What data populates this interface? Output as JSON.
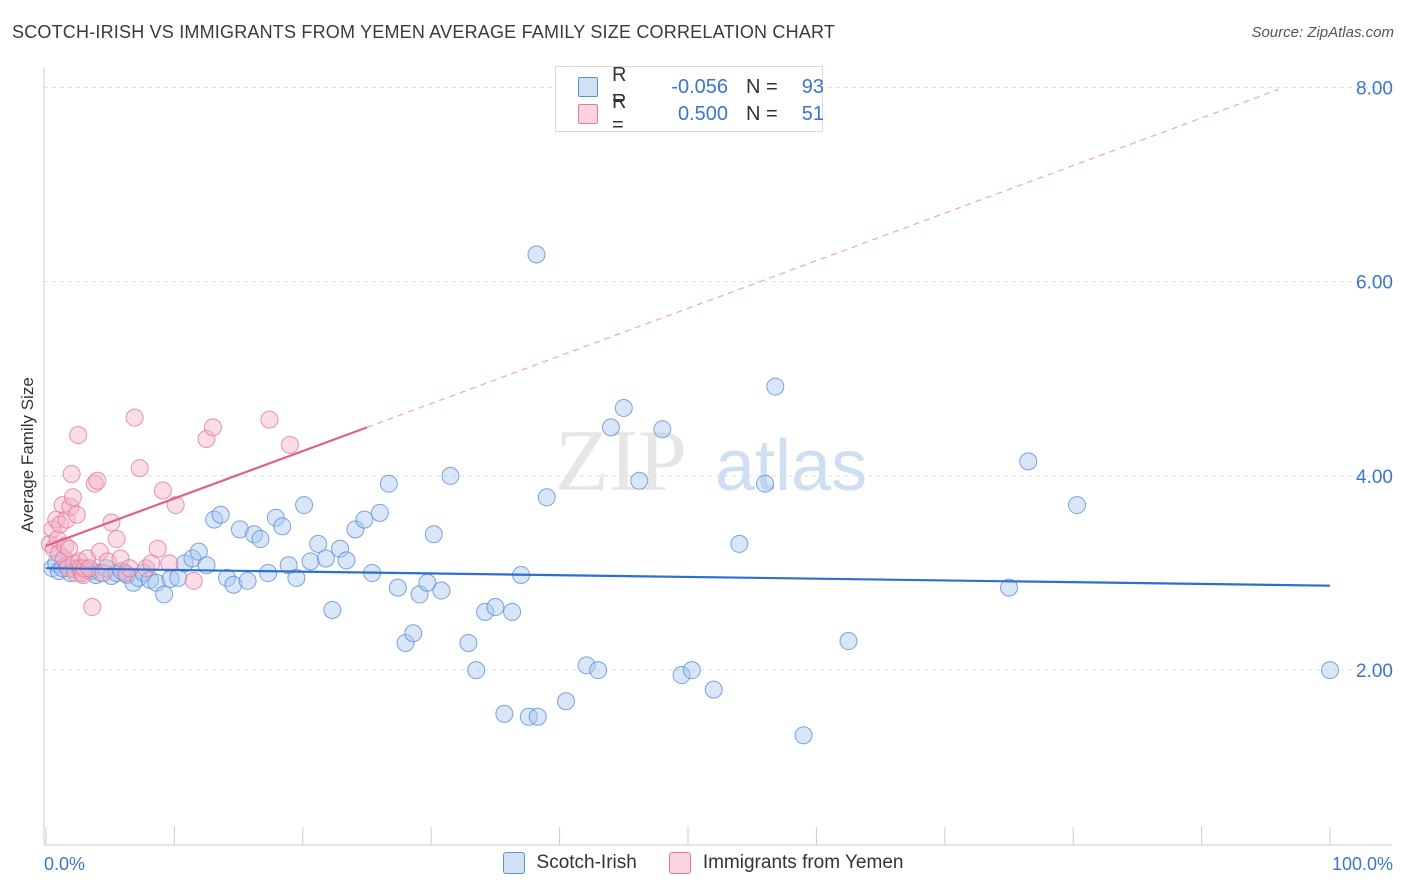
{
  "title": "SCOTCH-IRISH VS IMMIGRANTS FROM YEMEN AVERAGE FAMILY SIZE CORRELATION CHART",
  "source": "Source: ZipAtlas.com",
  "watermark": {
    "zip": "ZIP",
    "atlas": "atlas"
  },
  "legend": {
    "rows": [
      {
        "r_label": "R =",
        "r_value": "-0.056",
        "n_label": "N =",
        "n_value": "93",
        "color": "#a9c8ef"
      },
      {
        "r_label": "R =",
        "r_value": "0.500",
        "n_label": "N =",
        "n_value": "51",
        "color": "#f5b3c8"
      }
    ]
  },
  "colors": {
    "blue_fill": "#a9c8ef",
    "blue_stroke": "#5b8fd6",
    "blue_line": "#2a6fd1",
    "pink_fill": "#f5b3c8",
    "pink_stroke": "#e27a9c",
    "pink_line": "#e0608c",
    "axis_text": "#3a77c9",
    "grid": "#dddddd"
  },
  "chart_data": {
    "type": "scatter",
    "title": "SCOTCH-IRISH VS IMMIGRANTS FROM YEMEN AVERAGE FAMILY SIZE CORRELATION CHART",
    "xlabel": "",
    "ylabel": "Average Family Size",
    "x_tick_labels": [
      "0.0%",
      "100.0%"
    ],
    "y_tick_labels": [
      "2.00",
      "4.00",
      "6.00",
      "8.00"
    ],
    "y_ticks": [
      2,
      4,
      6,
      8
    ],
    "xlim": [
      0,
      100
    ],
    "ylim": [
      0.2,
      8.2
    ],
    "grid": true,
    "legend_position": "top-center",
    "series": [
      {
        "name": "Scotch-Irish",
        "color": "#a9c8ef",
        "trend": {
          "x": [
            0,
            100
          ],
          "y": [
            3.05,
            2.87
          ]
        },
        "points": [
          [
            0.5,
            3.05
          ],
          [
            0.8,
            3.1
          ],
          [
            1.0,
            3.02
          ],
          [
            1.3,
            3.05
          ],
          [
            1.6,
            3.08
          ],
          [
            1.9,
            3.0
          ],
          [
            2.2,
            3.04
          ],
          [
            2.5,
            3.06
          ],
          [
            2.8,
            3.0
          ],
          [
            3.2,
            3.03
          ],
          [
            3.5,
            3.02
          ],
          [
            3.9,
            2.98
          ],
          [
            4.3,
            3.0
          ],
          [
            4.7,
            3.05
          ],
          [
            5.1,
            2.97
          ],
          [
            5.5,
            3.0
          ],
          [
            5.9,
            3.02
          ],
          [
            6.3,
            2.98
          ],
          [
            6.8,
            2.9
          ],
          [
            7.2,
            2.95
          ],
          [
            7.6,
            3.0
          ],
          [
            8.1,
            2.93
          ],
          [
            8.6,
            2.9
          ],
          [
            9.2,
            2.78
          ],
          [
            9.7,
            2.94
          ],
          [
            10.3,
            2.95
          ],
          [
            10.8,
            3.1
          ],
          [
            11.4,
            3.15
          ],
          [
            11.9,
            3.22
          ],
          [
            12.5,
            3.08
          ],
          [
            13.1,
            3.55
          ],
          [
            13.6,
            3.6
          ],
          [
            14.1,
            2.95
          ],
          [
            14.6,
            2.88
          ],
          [
            15.1,
            3.45
          ],
          [
            15.7,
            2.92
          ],
          [
            16.2,
            3.4
          ],
          [
            16.7,
            3.35
          ],
          [
            17.3,
            3.0
          ],
          [
            17.9,
            3.57
          ],
          [
            18.4,
            3.48
          ],
          [
            18.9,
            3.08
          ],
          [
            19.5,
            2.95
          ],
          [
            20.1,
            3.7
          ],
          [
            20.6,
            3.12
          ],
          [
            21.2,
            3.3
          ],
          [
            21.8,
            3.15
          ],
          [
            22.3,
            2.62
          ],
          [
            22.9,
            3.25
          ],
          [
            23.4,
            3.13
          ],
          [
            24.1,
            3.45
          ],
          [
            24.8,
            3.55
          ],
          [
            25.4,
            3.0
          ],
          [
            26.0,
            3.62
          ],
          [
            26.7,
            3.92
          ],
          [
            27.4,
            2.85
          ],
          [
            28.0,
            2.28
          ],
          [
            28.6,
            2.38
          ],
          [
            29.1,
            2.78
          ],
          [
            29.7,
            2.9
          ],
          [
            30.2,
            3.4
          ],
          [
            30.8,
            2.82
          ],
          [
            31.5,
            4.0
          ],
          [
            32.9,
            2.28
          ],
          [
            33.5,
            2.0
          ],
          [
            34.2,
            2.6
          ],
          [
            35.0,
            2.65
          ],
          [
            35.7,
            1.55
          ],
          [
            36.3,
            2.6
          ],
          [
            37.0,
            2.98
          ],
          [
            37.6,
            1.52
          ],
          [
            38.3,
            1.52
          ],
          [
            39.0,
            3.78
          ],
          [
            38.2,
            6.28
          ],
          [
            40.5,
            1.68
          ],
          [
            42.1,
            2.05
          ],
          [
            43.0,
            2.0
          ],
          [
            44.0,
            4.5
          ],
          [
            45.0,
            4.7
          ],
          [
            46.2,
            3.95
          ],
          [
            48.0,
            4.48
          ],
          [
            49.5,
            1.95
          ],
          [
            50.3,
            2.0
          ],
          [
            52.0,
            1.8
          ],
          [
            54.0,
            3.3
          ],
          [
            56.0,
            3.92
          ],
          [
            56.8,
            4.92
          ],
          [
            59.0,
            1.33
          ],
          [
            62.5,
            2.3
          ],
          [
            75.0,
            2.85
          ],
          [
            76.5,
            4.15
          ],
          [
            80.3,
            3.7
          ],
          [
            100.0,
            2.0
          ]
        ]
      },
      {
        "name": "Immigrants from Yemen",
        "color": "#f5b3c8",
        "trend": {
          "x": [
            0,
            25
          ],
          "y": [
            3.28,
            4.5
          ]
        },
        "trend_extended": {
          "x": [
            25,
            96
          ],
          "y": [
            4.5,
            7.98
          ]
        },
        "points": [
          [
            0.3,
            3.3
          ],
          [
            0.5,
            3.45
          ],
          [
            0.6,
            3.25
          ],
          [
            0.8,
            3.55
          ],
          [
            0.9,
            3.35
          ],
          [
            1.0,
            3.2
          ],
          [
            1.1,
            3.5
          ],
          [
            1.3,
            3.7
          ],
          [
            1.4,
            3.15
          ],
          [
            1.5,
            3.28
          ],
          [
            1.6,
            3.55
          ],
          [
            1.7,
            3.05
          ],
          [
            1.8,
            3.25
          ],
          [
            1.9,
            3.68
          ],
          [
            2.0,
            4.02
          ],
          [
            2.1,
            3.78
          ],
          [
            2.2,
            3.1
          ],
          [
            2.3,
            3.0
          ],
          [
            2.4,
            3.6
          ],
          [
            2.5,
            4.42
          ],
          [
            2.6,
            3.12
          ],
          [
            2.7,
            3.05
          ],
          [
            2.8,
            3.0
          ],
          [
            2.9,
            2.98
          ],
          [
            3.0,
            3.05
          ],
          [
            3.2,
            3.15
          ],
          [
            3.4,
            3.05
          ],
          [
            3.6,
            2.65
          ],
          [
            3.8,
            3.92
          ],
          [
            4.0,
            3.95
          ],
          [
            4.2,
            3.22
          ],
          [
            4.5,
            3.0
          ],
          [
            4.8,
            3.12
          ],
          [
            5.1,
            3.52
          ],
          [
            5.5,
            3.35
          ],
          [
            5.8,
            3.15
          ],
          [
            6.2,
            3.0
          ],
          [
            6.5,
            3.05
          ],
          [
            6.9,
            4.6
          ],
          [
            7.3,
            4.08
          ],
          [
            7.8,
            3.05
          ],
          [
            8.2,
            3.1
          ],
          [
            8.7,
            3.25
          ],
          [
            9.1,
            3.85
          ],
          [
            9.6,
            3.1
          ],
          [
            10.1,
            3.7
          ],
          [
            11.5,
            2.92
          ],
          [
            12.5,
            4.38
          ],
          [
            13.0,
            4.5
          ],
          [
            17.4,
            4.58
          ],
          [
            19.0,
            4.32
          ]
        ]
      }
    ]
  }
}
